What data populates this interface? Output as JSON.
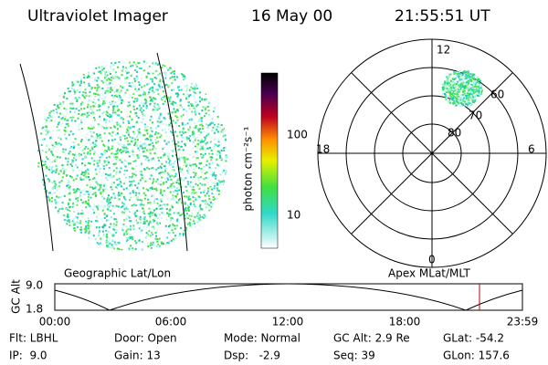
{
  "header": {
    "title": "Ultraviolet Imager",
    "date": "16 May 00",
    "time": "21:55:51 UT"
  },
  "colorbar": {
    "label": "photon cm⁻²s⁻¹",
    "ticks": [
      "100",
      "10"
    ]
  },
  "polar": {
    "mlt_labels": [
      "12",
      "18",
      "6",
      "0"
    ],
    "lat_labels": [
      "80",
      "70",
      "60"
    ]
  },
  "panel_labels": [
    "Geographic Lat/Lon",
    "Apex MLat/MLT"
  ],
  "altitude": {
    "axis_label": "GC Alt",
    "yticks": [
      "9.0",
      "1.8"
    ],
    "xticks": [
      "00:00",
      "06:00",
      "12:00",
      "18:00",
      "23:59"
    ]
  },
  "footer": {
    "rows": [
      [
        "Flt: LBHL",
        "Door: Open",
        "Mode: Normal",
        "GC Alt: 2.9 Re",
        "GLat: -54.2"
      ],
      [
        "IP:  9.0",
        "Gain: 13",
        "Dsp:   -2.9",
        "Seq: 39",
        "GLon: 157.6"
      ]
    ]
  }
}
